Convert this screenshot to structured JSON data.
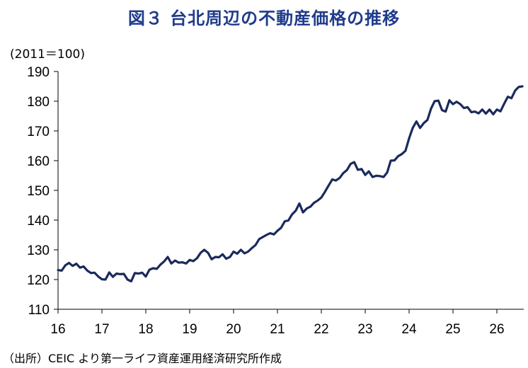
{
  "chart_data": {
    "type": "line",
    "title": "図３ 台北周辺の不動産価格の推移",
    "unit_label": "(2011＝100)",
    "source": "（出所）CEIC より第一ライフ資産運用経済研究所作成",
    "xlabel": "",
    "ylabel": "",
    "ylim": [
      110,
      190
    ],
    "yticks": [
      "110",
      "120",
      "130",
      "140",
      "150",
      "160",
      "170",
      "180",
      "190"
    ],
    "xlim": [
      16,
      26.6
    ],
    "xticks": [
      "16",
      "17",
      "18",
      "19",
      "20",
      "21",
      "22",
      "23",
      "24",
      "25",
      "26"
    ],
    "grid": false,
    "legend": "none",
    "color": "#1b2a5c",
    "series": [
      {
        "name": "",
        "x": [
          16.0,
          16.083,
          16.167,
          16.25,
          16.333,
          16.417,
          16.5,
          16.583,
          16.667,
          16.75,
          16.833,
          16.917,
          17.0,
          17.083,
          17.167,
          17.25,
          17.333,
          17.417,
          17.5,
          17.583,
          17.667,
          17.75,
          17.833,
          17.917,
          18.0,
          18.083,
          18.167,
          18.25,
          18.333,
          18.417,
          18.5,
          18.583,
          18.667,
          18.75,
          18.833,
          18.917,
          19.0,
          19.083,
          19.167,
          19.25,
          19.333,
          19.417,
          19.5,
          19.583,
          19.667,
          19.75,
          19.833,
          19.917,
          20.0,
          20.083,
          20.167,
          20.25,
          20.333,
          20.417,
          20.5,
          20.583,
          20.667,
          20.75,
          20.833,
          20.917,
          21.0,
          21.083,
          21.167,
          21.25,
          21.333,
          21.417,
          21.5,
          21.583,
          21.667,
          21.75,
          21.833,
          21.917,
          22.0,
          22.083,
          22.167,
          22.25,
          22.333,
          22.417,
          22.5,
          22.583,
          22.667,
          22.75,
          22.833,
          22.917,
          23.0,
          23.083,
          23.167,
          23.25,
          23.333,
          23.417,
          23.5,
          23.583,
          23.667,
          23.75,
          23.833,
          23.917,
          24.0,
          24.083,
          24.167,
          24.25,
          24.333,
          24.417,
          24.5,
          24.583,
          24.667,
          24.75,
          24.833,
          24.917,
          25.0,
          25.083,
          25.167,
          25.25,
          25.333,
          25.417,
          25.5,
          25.583,
          25.667,
          25.75,
          25.833,
          25.917,
          26.0,
          26.083,
          26.167,
          26.25,
          26.333,
          26.417,
          26.5,
          26.583
        ],
        "values": [
          123.2,
          123.0,
          124.8,
          125.6,
          124.6,
          125.3,
          124.0,
          124.4,
          123.0,
          122.2,
          122.3,
          121.0,
          120.1,
          120.0,
          122.4,
          120.9,
          122.0,
          121.8,
          121.9,
          120.0,
          119.4,
          122.2,
          122.0,
          122.3,
          121.0,
          123.3,
          123.8,
          123.6,
          125.0,
          126.1,
          127.6,
          125.4,
          126.4,
          125.7,
          125.8,
          125.4,
          126.6,
          126.2,
          127.2,
          129.0,
          130.0,
          129.0,
          126.8,
          127.6,
          127.5,
          128.5,
          127.0,
          127.6,
          129.4,
          128.7,
          130.0,
          128.8,
          129.4,
          130.6,
          131.6,
          133.6,
          134.3,
          135.0,
          135.6,
          135.2,
          136.4,
          137.4,
          139.6,
          139.9,
          141.9,
          143.2,
          145.6,
          142.6,
          143.9,
          144.5,
          145.8,
          146.6,
          147.6,
          149.5,
          151.7,
          153.7,
          153.3,
          154.2,
          155.8,
          156.8,
          158.9,
          159.5,
          156.9,
          157.2,
          155.2,
          156.4,
          154.5,
          154.9,
          154.8,
          154.5,
          156.0,
          160.0,
          160.1,
          161.5,
          162.2,
          163.3,
          167.5,
          171.0,
          173.2,
          171.0,
          172.6,
          173.7,
          177.5,
          180.0,
          180.2,
          177.0,
          176.5,
          180.3,
          179.0,
          179.8,
          179.0,
          177.7,
          178.0,
          176.3,
          176.5,
          175.9,
          177.2,
          175.8,
          177.2,
          175.6,
          177.2,
          176.6,
          179.2,
          181.5,
          181.0,
          183.6,
          184.8,
          185.0
        ]
      }
    ]
  }
}
